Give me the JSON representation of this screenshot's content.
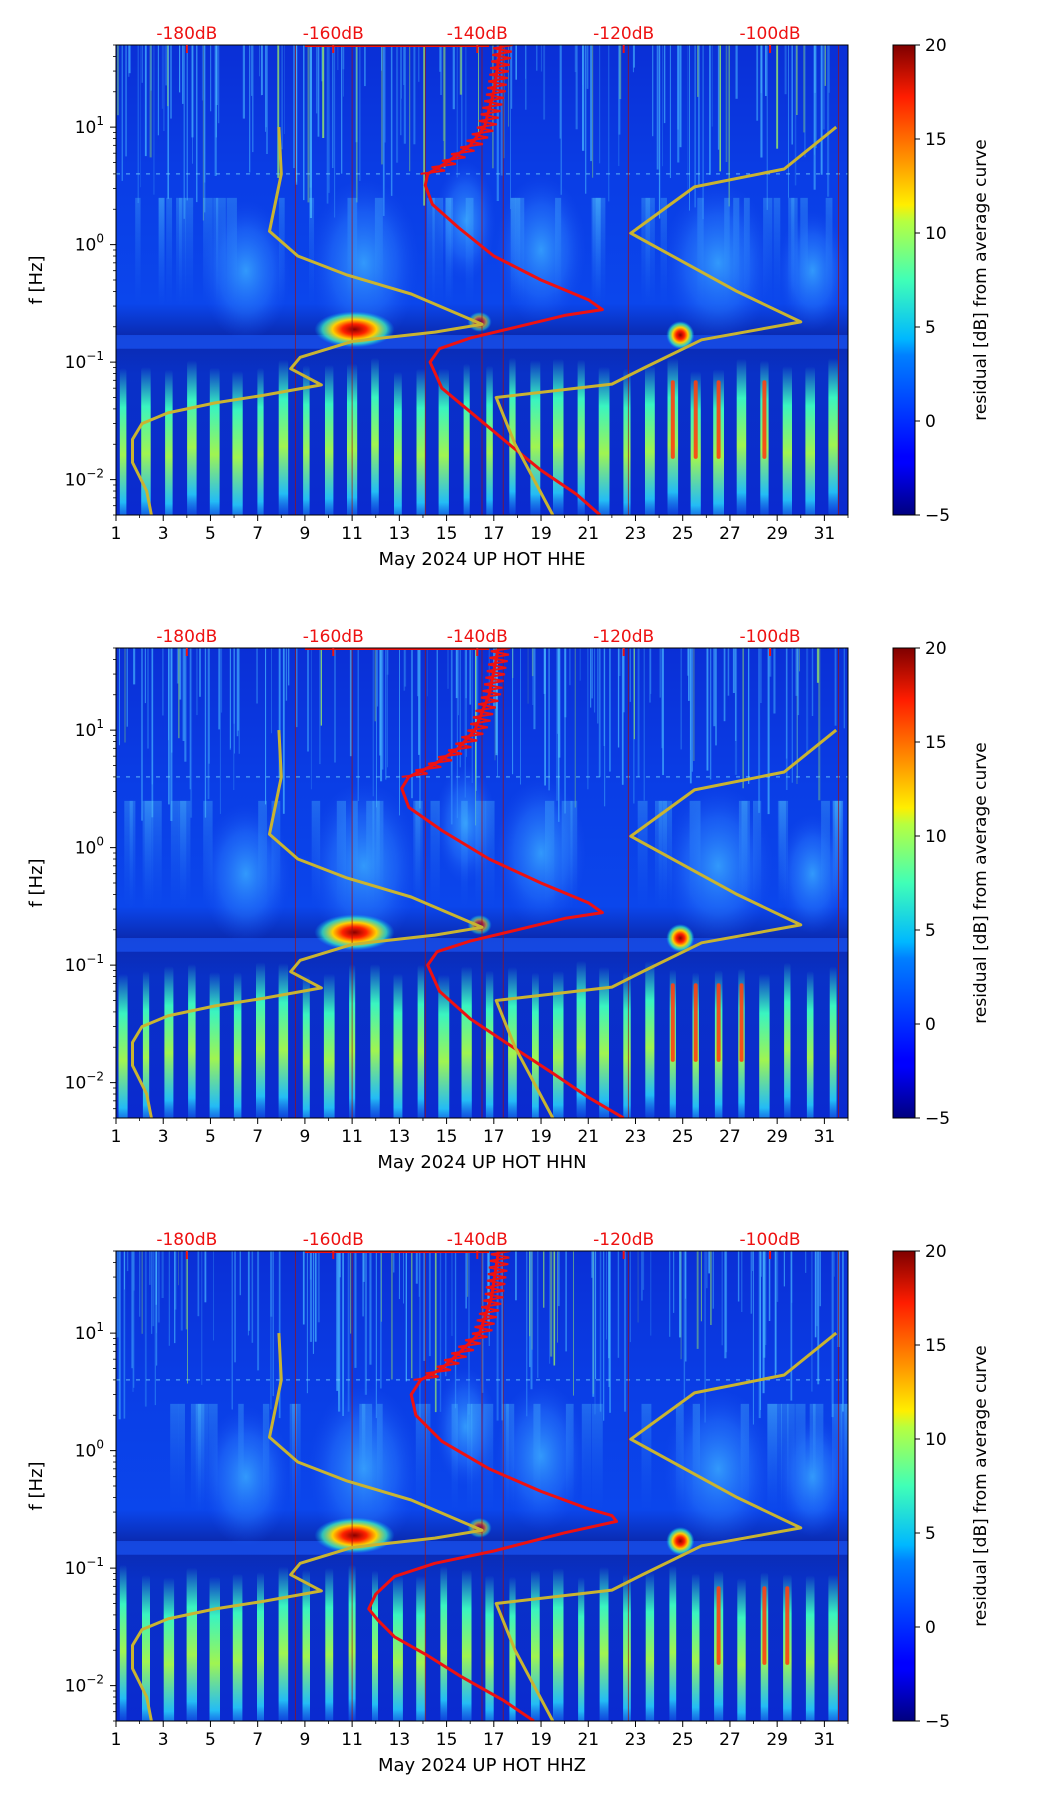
{
  "chart_data": [
    {
      "type": "heatmap",
      "channel": "HHE",
      "xlabel": "May 2024 UP HOT  HHE",
      "ylabel": "f [Hz]",
      "x_ticks": [
        "1",
        "3",
        "5",
        "7",
        "9",
        "11",
        "13",
        "15",
        "17",
        "19",
        "21",
        "23",
        "25",
        "27",
        "29",
        "31"
      ],
      "xlim": [
        1,
        32
      ],
      "ylim": [
        0.005,
        50
      ],
      "yscale": "log",
      "y_ticks": [
        {
          "value": 10,
          "base": "10",
          "exp": "1"
        },
        {
          "value": 1,
          "base": "10",
          "exp": "0"
        },
        {
          "value": 0.1,
          "base": "10",
          "exp": "−1"
        },
        {
          "value": 0.01,
          "base": "10",
          "exp": "−2"
        }
      ],
      "top_axis_labels": [
        "-180dB",
        "-160dB",
        "-140dB",
        "-120dB",
        "-100dB"
      ],
      "top_axis_color": "#ee1111",
      "colorbar": {
        "label": "residual [dB] from average curve",
        "ticks": [
          "−5",
          "0",
          "5",
          "10",
          "15",
          "20"
        ],
        "range": [
          -5,
          20
        ],
        "colormap": "jet"
      },
      "series": [
        {
          "color": "#ee1111",
          "x": [
            21.5,
            20.5,
            19,
            17.4,
            16.2,
            14.8,
            14.3,
            14.7,
            16,
            18,
            20,
            21.6,
            21,
            19,
            17,
            15.5,
            14.4,
            14.1,
            14.2,
            15,
            16,
            16.6,
            17,
            17.3
          ],
          "y": [
            0.005,
            0.0075,
            0.012,
            0.022,
            0.035,
            0.06,
            0.1,
            0.13,
            0.16,
            0.2,
            0.25,
            0.28,
            0.34,
            0.5,
            0.8,
            1.4,
            2.2,
            3.2,
            4,
            5,
            7,
            10,
            20,
            50
          ]
        },
        {
          "color": "#c9b431",
          "x": [
            2.5,
            2.3,
            1.7,
            1.7,
            2.1,
            3.2,
            5.2,
            7.2,
            9.7,
            8.4,
            8.8,
            11,
            14.5,
            16.5,
            13.5,
            10.8,
            8.7,
            7.5,
            8,
            7.9
          ],
          "y": [
            0.005,
            0.008,
            0.014,
            0.022,
            0.03,
            0.037,
            0.045,
            0.052,
            0.064,
            0.088,
            0.11,
            0.15,
            0.18,
            0.21,
            0.38,
            0.55,
            0.8,
            1.3,
            4,
            10
          ]
        },
        {
          "color": "#c9b431",
          "x": [
            19.5,
            17.9,
            17.1,
            22,
            23.4,
            25.8,
            30,
            27.3,
            22.8,
            25.5,
            29.3,
            31.5
          ],
          "y": [
            0.005,
            0.02,
            0.05,
            0.065,
            0.09,
            0.155,
            0.22,
            0.4,
            1.25,
            3.1,
            4.4,
            10
          ]
        }
      ]
    },
    {
      "type": "heatmap",
      "channel": "HHN",
      "xlabel": "May 2024 UP HOT  HHN",
      "ylabel": "f [Hz]",
      "x_ticks": [
        "1",
        "3",
        "5",
        "7",
        "9",
        "11",
        "13",
        "15",
        "17",
        "19",
        "21",
        "23",
        "25",
        "27",
        "29",
        "31"
      ],
      "xlim": [
        1,
        32
      ],
      "ylim": [
        0.005,
        50
      ],
      "yscale": "log",
      "y_ticks": [
        {
          "value": 10,
          "base": "10",
          "exp": "1"
        },
        {
          "value": 1,
          "base": "10",
          "exp": "0"
        },
        {
          "value": 0.1,
          "base": "10",
          "exp": "−1"
        },
        {
          "value": 0.01,
          "base": "10",
          "exp": "−2"
        }
      ],
      "top_axis_labels": [
        "-180dB",
        "-160dB",
        "-140dB",
        "-120dB",
        "-100dB"
      ],
      "top_axis_color": "#ee1111",
      "colorbar": {
        "label": "residual [dB] from average curve",
        "ticks": [
          "−5",
          "0",
          "5",
          "10",
          "15",
          "20"
        ],
        "range": [
          -5,
          20
        ],
        "colormap": "jet"
      },
      "series": [
        {
          "color": "#ee1111",
          "x": [
            22.5,
            21,
            19.5,
            17.5,
            16,
            14.7,
            14.2,
            14.6,
            16,
            18,
            20,
            21.6,
            21,
            19,
            16.8,
            14.8,
            13.4,
            13.1,
            13.4,
            14.4,
            15.5,
            16.2,
            16.8,
            17.2
          ],
          "y": [
            0.005,
            0.0075,
            0.012,
            0.022,
            0.035,
            0.06,
            0.1,
            0.13,
            0.16,
            0.2,
            0.25,
            0.28,
            0.34,
            0.5,
            0.8,
            1.4,
            2.2,
            3.2,
            4,
            5,
            7,
            10,
            20,
            50
          ]
        },
        {
          "color": "#c9b431",
          "x": [
            2.5,
            2.3,
            1.7,
            1.7,
            2.1,
            3.2,
            5.2,
            7.2,
            9.7,
            8.4,
            8.8,
            11,
            14.5,
            16.5,
            13.5,
            10.8,
            8.7,
            7.5,
            8,
            7.9
          ],
          "y": [
            0.005,
            0.008,
            0.014,
            0.022,
            0.03,
            0.037,
            0.045,
            0.052,
            0.064,
            0.088,
            0.11,
            0.15,
            0.18,
            0.21,
            0.38,
            0.55,
            0.8,
            1.3,
            4,
            10
          ]
        },
        {
          "color": "#c9b431",
          "x": [
            19.5,
            17.9,
            17.1,
            22,
            23.4,
            25.8,
            30,
            27.3,
            22.8,
            25.5,
            29.3,
            31.5
          ],
          "y": [
            0.005,
            0.02,
            0.05,
            0.065,
            0.09,
            0.155,
            0.22,
            0.4,
            1.25,
            3.1,
            4.4,
            10
          ]
        }
      ]
    },
    {
      "type": "heatmap",
      "channel": "HHZ",
      "xlabel": "May 2024 UP HOT  HHZ",
      "ylabel": "f [Hz]",
      "x_ticks": [
        "1",
        "3",
        "5",
        "7",
        "9",
        "11",
        "13",
        "15",
        "17",
        "19",
        "21",
        "23",
        "25",
        "27",
        "29",
        "31"
      ],
      "xlim": [
        1,
        32
      ],
      "ylim": [
        0.005,
        50
      ],
      "yscale": "log",
      "y_ticks": [
        {
          "value": 10,
          "base": "10",
          "exp": "1"
        },
        {
          "value": 1,
          "base": "10",
          "exp": "0"
        },
        {
          "value": 0.1,
          "base": "10",
          "exp": "−1"
        },
        {
          "value": 0.01,
          "base": "10",
          "exp": "−2"
        }
      ],
      "top_axis_labels": [
        "-180dB",
        "-160dB",
        "-140dB",
        "-120dB",
        "-100dB"
      ],
      "top_axis_color": "#ee1111",
      "colorbar": {
        "label": "residual [dB] from average curve",
        "ticks": [
          "−5",
          "0",
          "5",
          "10",
          "15",
          "20"
        ],
        "range": [
          -5,
          20
        ],
        "colormap": "jet"
      },
      "series": [
        {
          "color": "#ee1111",
          "x": [
            18.7,
            17.4,
            15.6,
            14.2,
            12.8,
            12.1,
            11.7,
            12,
            12.8,
            14.5,
            17,
            20,
            22.2,
            22,
            21,
            19,
            16.8,
            14.8,
            13.7,
            13.5,
            13.9,
            14.8,
            15.6,
            16.4,
            16.9,
            17.2
          ],
          "y": [
            0.005,
            0.0075,
            0.012,
            0.018,
            0.026,
            0.036,
            0.045,
            0.06,
            0.085,
            0.11,
            0.14,
            0.2,
            0.25,
            0.28,
            0.32,
            0.45,
            0.7,
            1.2,
            2,
            3,
            4,
            5,
            7,
            10,
            20,
            50
          ]
        },
        {
          "color": "#c9b431",
          "x": [
            2.5,
            2.3,
            1.7,
            1.7,
            2.1,
            3.2,
            5.2,
            7.2,
            9.7,
            8.4,
            8.8,
            11,
            14.5,
            16.5,
            13.5,
            10.8,
            8.7,
            7.5,
            8,
            7.9
          ],
          "y": [
            0.005,
            0.008,
            0.014,
            0.022,
            0.03,
            0.037,
            0.045,
            0.052,
            0.064,
            0.088,
            0.11,
            0.15,
            0.18,
            0.21,
            0.38,
            0.55,
            0.8,
            1.3,
            4,
            10
          ]
        },
        {
          "color": "#c9b431",
          "x": [
            19.5,
            17.9,
            17.1,
            22,
            23.4,
            25.8,
            30,
            27.3,
            22.8,
            25.5,
            29.3,
            31.5
          ],
          "y": [
            0.005,
            0.02,
            0.05,
            0.065,
            0.09,
            0.155,
            0.22,
            0.4,
            1.25,
            3.1,
            4.4,
            10
          ]
        }
      ]
    }
  ]
}
